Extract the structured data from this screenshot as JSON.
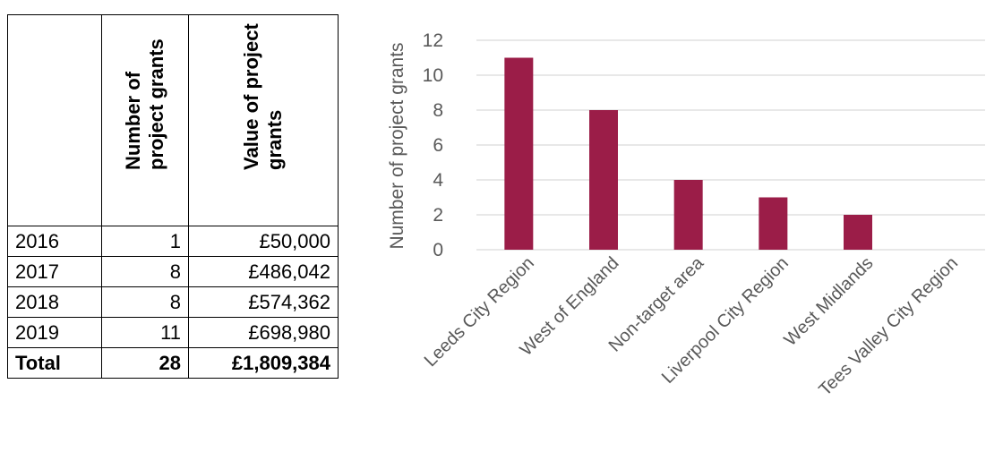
{
  "table": {
    "headers": [
      "",
      "Number of project grants",
      "Value of project grants"
    ],
    "header_lines": {
      "number": [
        "Number of",
        "project grants"
      ],
      "value": [
        "Value of project",
        "grants"
      ]
    },
    "rows": [
      {
        "year": "2016",
        "number": "1",
        "value": "£50,000"
      },
      {
        "year": "2017",
        "number": "8",
        "value": "£486,042"
      },
      {
        "year": "2018",
        "number": "8",
        "value": "£574,362"
      },
      {
        "year": "2019",
        "number": "11",
        "value": "£698,980"
      }
    ],
    "total": {
      "label": "Total",
      "number": "28",
      "value": "£1,809,384"
    }
  },
  "chart_data": {
    "type": "bar",
    "categories": [
      "Leeds City Region",
      "West of England",
      "Non-target area",
      "Liverpool City Region",
      "West Midlands",
      "Tees Valley City Region"
    ],
    "values": [
      11,
      8,
      4,
      3,
      2,
      0
    ],
    "xlabel": "",
    "ylabel": "Number of project grants",
    "ylim": [
      0,
      12
    ],
    "yticks": [
      0,
      2,
      4,
      6,
      8,
      10,
      12
    ],
    "grid": true,
    "bar_color": "#9B1D48",
    "grid_color": "#D9D9D9",
    "text_color": "#595959"
  }
}
